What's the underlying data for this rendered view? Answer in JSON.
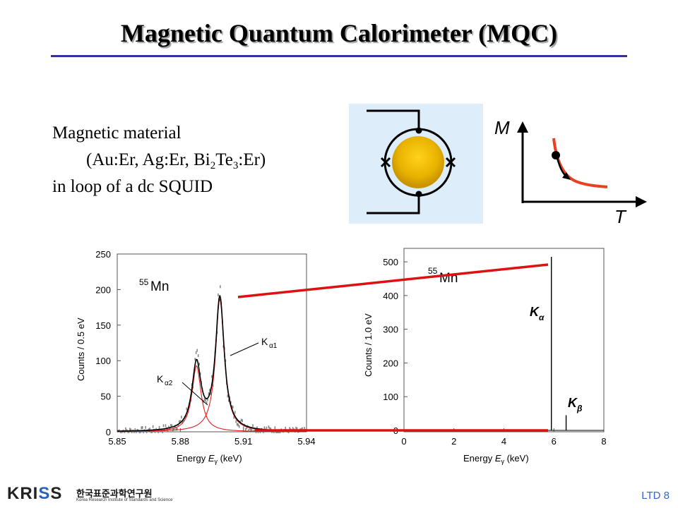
{
  "slide": {
    "title": "Magnetic Quantum Calorimeter (MQC)",
    "desc_line1": "Magnetic material",
    "desc_line2_pre": "(Au:Er, Ag:Er, Bi",
    "desc_line2_sub1": "2",
    "desc_line2_mid": "Te",
    "desc_line2_sub2": "3",
    "desc_line2_post": ":Er)",
    "desc_line3": "in loop of a dc SQUID",
    "slide_number": "LTD 8"
  },
  "mt_plot": {
    "y_label": "M",
    "x_label": "T"
  },
  "footer": {
    "logo_left": "KRI",
    "logo_s": "S",
    "logo_right": "S",
    "logo_korean": "한국표준과학연구원",
    "logo_english": "Korea Research Institute of Standards and Science"
  },
  "colors": {
    "title_rule": "#33339a",
    "squid_bg": "#ddeefa",
    "absorber": "#e8b800",
    "fit_red": "#e02020",
    "zoom_red": "#dd1111",
    "page_num": "#3366cc"
  },
  "chart_data": [
    {
      "type": "line",
      "isotope_mass": "55",
      "isotope_symbol": "Mn",
      "xlabel_pre": "Energy ",
      "xlabel_var": "E",
      "xlabel_sub": "γ",
      "xlabel_post": " (keV)",
      "ylabel": "Counts / 0.5 eV",
      "xlim": [
        5.85,
        5.94
      ],
      "ylim": [
        0,
        250
      ],
      "x_ticks": [
        "5.85",
        "5.88",
        "5.91",
        "5.94"
      ],
      "y_ticks": [
        "0",
        "50",
        "100",
        "150",
        "200",
        "250"
      ],
      "annotations": [
        {
          "label": "K",
          "sub": "α1",
          "x": 5.9,
          "y": 187
        },
        {
          "label": "K",
          "sub": "α2",
          "x": 5.888,
          "y": 95
        }
      ],
      "series": [
        {
          "name": "Kα1",
          "peak_x": 5.8988,
          "peak_y": 187,
          "width_keV": 0.0025
        },
        {
          "name": "Kα2",
          "peak_x": 5.8877,
          "peak_y": 93,
          "width_keV": 0.0026
        }
      ]
    },
    {
      "type": "line",
      "isotope_mass": "55",
      "isotope_symbol": "Mn",
      "xlabel_pre": "Energy ",
      "xlabel_var": "E",
      "xlabel_sub": "γ",
      "xlabel_post": " (keV)",
      "ylabel": "Counts / 1.0 eV",
      "xlim": [
        0,
        8
      ],
      "ylim": [
        0,
        540
      ],
      "x_ticks": [
        "0",
        "2",
        "4",
        "6",
        "8"
      ],
      "y_ticks": [
        "0",
        "100",
        "200",
        "300",
        "400",
        "500"
      ],
      "annotations": [
        {
          "label": "K",
          "sub": "α",
          "x": 5.9,
          "y": 355
        },
        {
          "label": "K",
          "sub": "β",
          "x": 6.49,
          "y": 80
        }
      ],
      "series": [
        {
          "name": "Kα",
          "x": 5.9,
          "y": 515
        },
        {
          "name": "Kβ",
          "x": 6.49,
          "y": 45
        }
      ]
    }
  ]
}
